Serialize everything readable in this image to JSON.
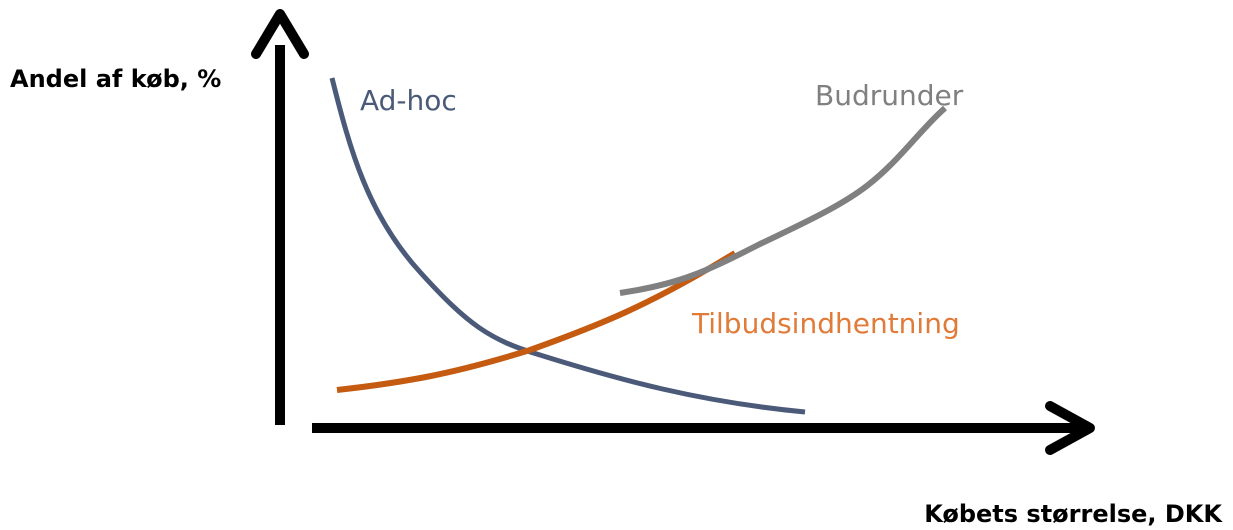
{
  "y_axis_label": "Andel af køb, %",
  "x_axis_label": "Købets størrelse, DKK",
  "curves": [
    {
      "label": "Ad-hoc"
    },
    {
      "label": "Budrunder"
    },
    {
      "label": "Tilbudsindhentning"
    }
  ]
}
